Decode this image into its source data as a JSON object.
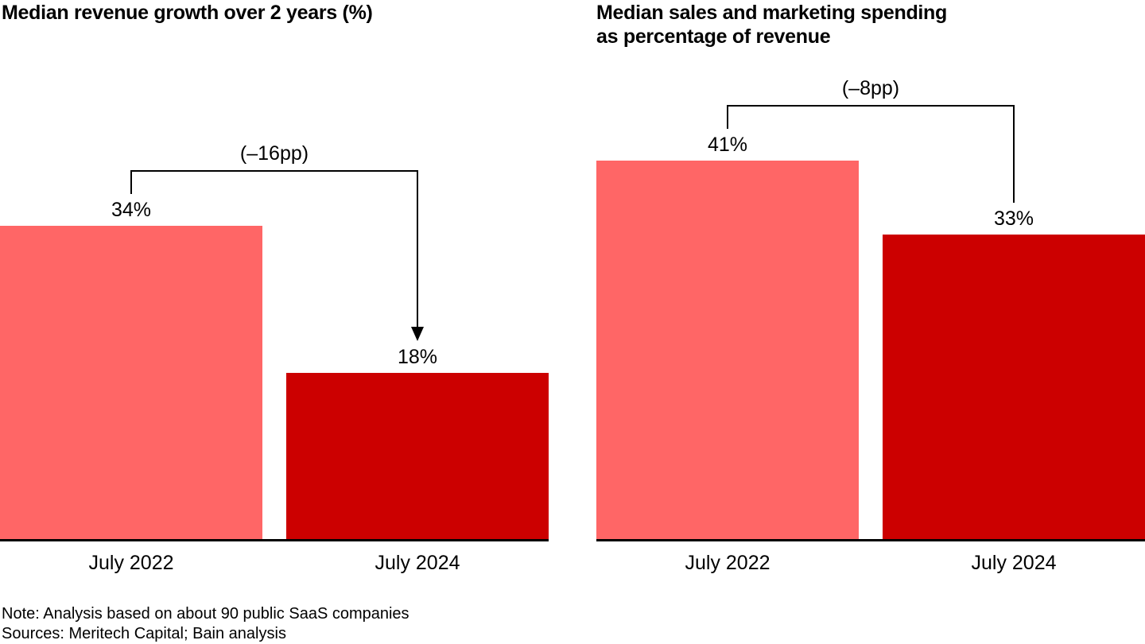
{
  "figure": {
    "background": "#ffffff",
    "text_color": "#000000",
    "axis_color": "#000000"
  },
  "chart_data": [
    {
      "type": "bar",
      "title": "Median revenue growth over 2 years (%)",
      "title_lines": [
        "Median revenue growth over 2 years (%)"
      ],
      "categories": [
        "July 2022",
        "July 2024"
      ],
      "values": [
        34,
        18
      ],
      "value_labels": [
        "34%",
        "18%"
      ],
      "unit": "%",
      "annotation": "(–16pp)",
      "annotation_arrow": true,
      "series_colors": [
        "#ff6666",
        "#cc0000"
      ],
      "ylim": [
        0,
        41
      ],
      "grid": false,
      "legend": "none",
      "xlabel": "",
      "ylabel": ""
    },
    {
      "type": "bar",
      "title": "Median sales and marketing spending as percentage of revenue",
      "title_lines": [
        "Median sales and marketing spending",
        "as percentage of revenue"
      ],
      "categories": [
        "July 2022",
        "July 2024"
      ],
      "values": [
        41,
        33
      ],
      "value_labels": [
        "41%",
        "33%"
      ],
      "unit": "%",
      "annotation": "(–8pp)",
      "annotation_arrow": false,
      "series_colors": [
        "#ff6666",
        "#cc0000"
      ],
      "ylim": [
        0,
        41
      ],
      "grid": false,
      "legend": "none",
      "xlabel": "",
      "ylabel": ""
    }
  ],
  "notes": {
    "note": "Note: Analysis based on about 90 public SaaS companies",
    "sources": "Sources: Meritech Capital; Bain analysis"
  }
}
